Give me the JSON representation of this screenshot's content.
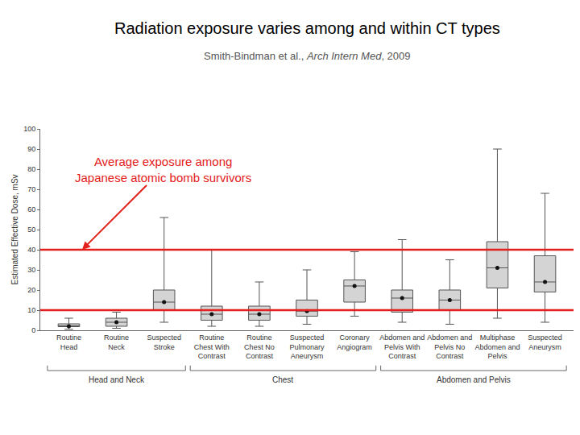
{
  "chart_data": {
    "type": "box",
    "title": "Radiation exposure varies among and within CT types",
    "subtitle": {
      "text": "Smith-Bindman et al., Arch Intern Med, 2009",
      "italic": "Arch Intern Med"
    },
    "y_label": "Estimated Effective Dose, mSv",
    "categories": [
      "Routine Head",
      "Routine Neck",
      "Suspected Stroke",
      "Routine Chest With Contrast",
      "Routine Chest No Contrast",
      "Suspected Pulmonary Aneurysm",
      "Coronary Angiogram",
      "Abdomen and Pelvis With Contrast",
      "Abdomen and Pelvis No Contrast",
      "Multiphase Abdomen and Pelvis",
      "Suspected Aneurysm"
    ],
    "lower": [
      0.5,
      1,
      4,
      2,
      2,
      3,
      7,
      4,
      3,
      6,
      4
    ],
    "q1": [
      1.8,
      2,
      10,
      5,
      5,
      7,
      14,
      9,
      10,
      21,
      19
    ],
    "median": [
      2,
      4,
      14,
      8,
      8,
      9.5,
      22,
      16,
      15,
      31,
      24
    ],
    "q3": [
      3.2,
      6,
      20,
      12,
      12,
      15,
      25,
      20,
      20,
      44,
      37
    ],
    "upper": [
      6,
      9,
      56,
      40,
      24,
      30,
      39,
      45,
      35,
      90,
      68
    ],
    "color": "#d4d4d4",
    "marker": "circle",
    "ylim": [
      0,
      100
    ],
    "yticks": [
      0,
      10,
      20,
      30,
      40,
      50,
      60,
      70,
      80,
      90,
      100
    ],
    "grid": false,
    "reference_lines": {
      "values": [
        10,
        40
      ],
      "color": "#e3201b"
    },
    "annotation": {
      "lines": [
        "Average exposure among",
        "Japanese atomic bomb survivors"
      ],
      "points_to": 40,
      "color": "#e3201b"
    },
    "groups": [
      {
        "label": "Head and Neck",
        "from": "Routine Head",
        "to": "Suspected Stroke"
      },
      {
        "label": "Chest",
        "from": "Routine Chest With Contrast",
        "to": "Coronary Angiogram"
      },
      {
        "label": "Abdomen and Pelvis",
        "from": "Abdomen and Pelvis With Contrast",
        "to": "Suspected Aneurysm"
      }
    ]
  }
}
